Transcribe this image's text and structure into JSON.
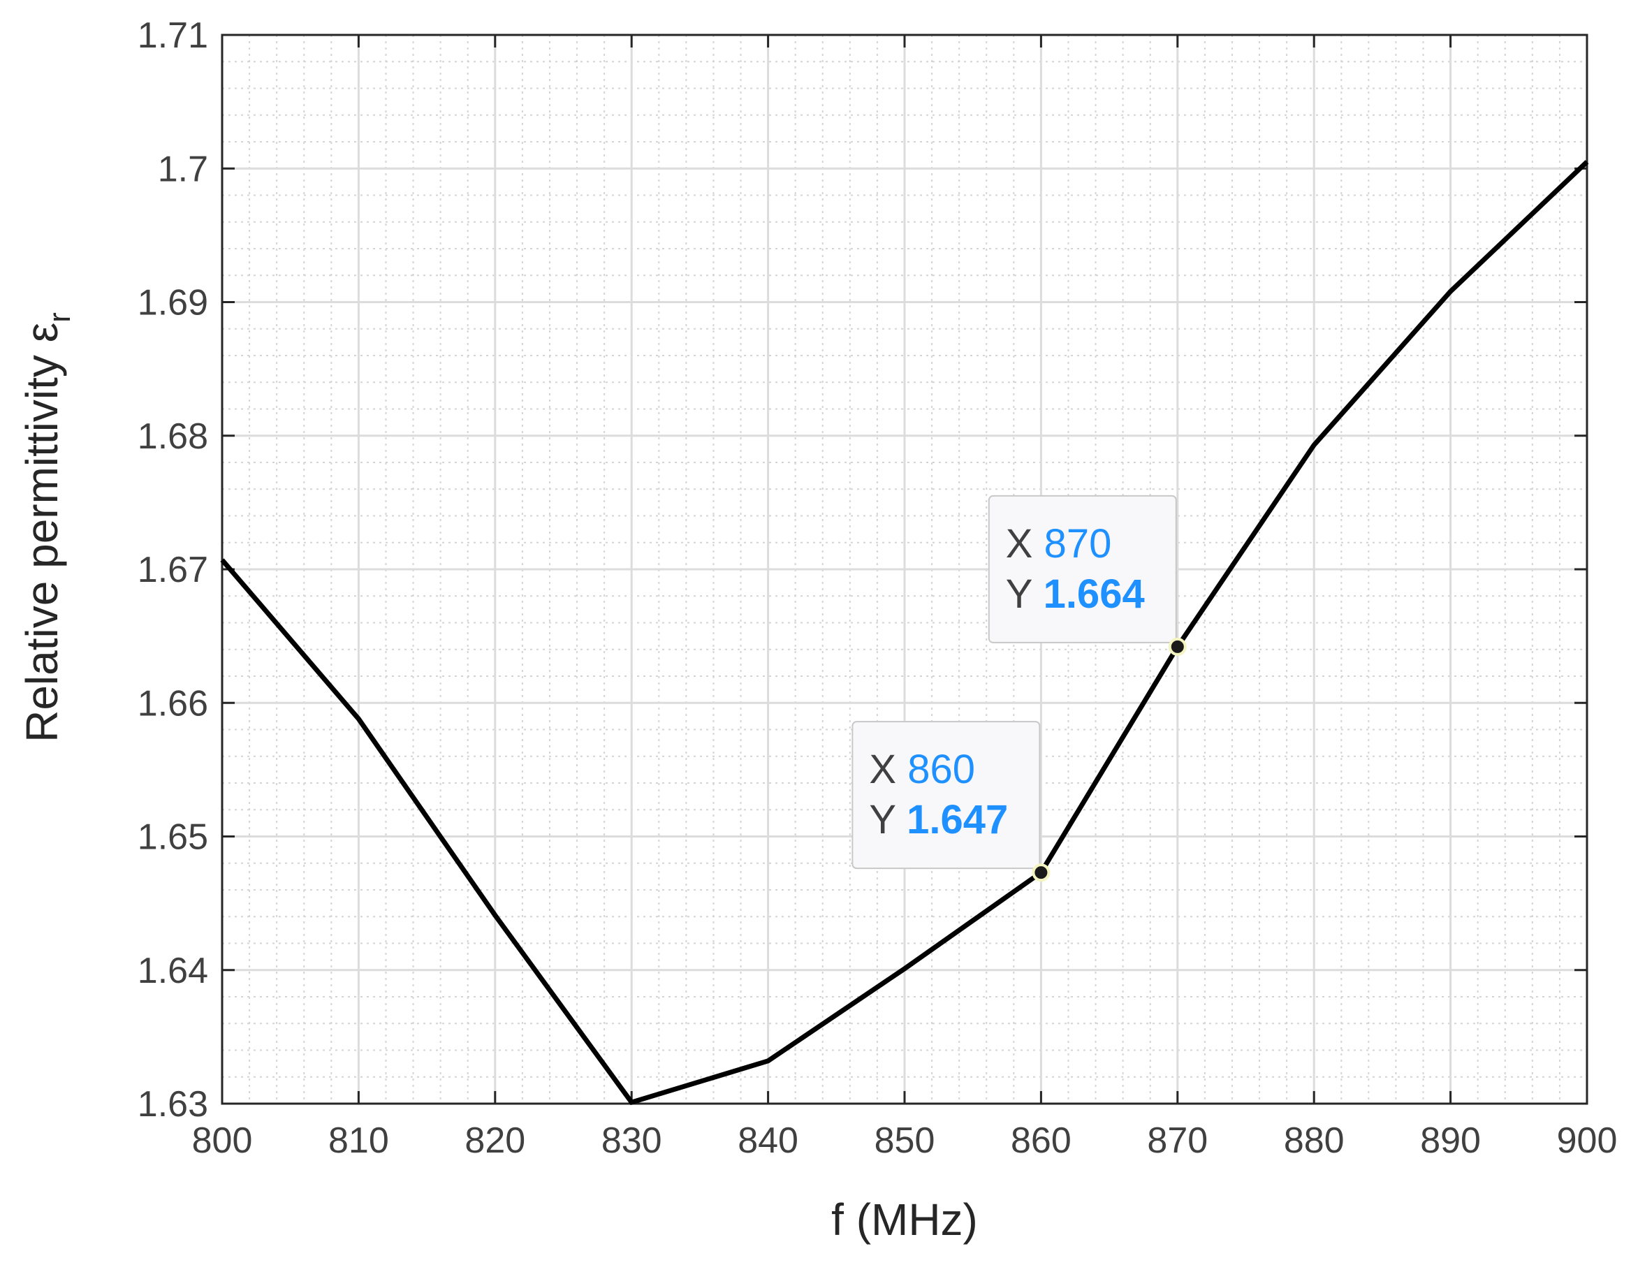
{
  "chart_data": {
    "type": "line",
    "title": "",
    "xlabel": "f (MHz)",
    "ylabel": "Relative permittivity ε",
    "ylabel_subscript": "r",
    "xlim": [
      800,
      900
    ],
    "ylim": [
      1.63,
      1.71
    ],
    "grid": true,
    "minor_grid": true,
    "x_ticks": [
      800,
      810,
      820,
      830,
      840,
      850,
      860,
      870,
      880,
      890,
      900
    ],
    "y_ticks": [
      1.63,
      1.64,
      1.65,
      1.66,
      1.67,
      1.68,
      1.69,
      1.7,
      1.71
    ],
    "x_tick_labels": [
      "800",
      "810",
      "820",
      "830",
      "840",
      "850",
      "860",
      "870",
      "880",
      "890",
      "900"
    ],
    "y_tick_labels": [
      "1.63",
      "1.64",
      "1.65",
      "1.66",
      "1.67",
      "1.68",
      "1.69",
      "1.7",
      "1.71"
    ],
    "series": [
      {
        "color": "#000000",
        "x": [
          800,
          810,
          820,
          830,
          840,
          850,
          860,
          870,
          880,
          890,
          900
        ],
        "y": [
          1.6707,
          1.6588,
          1.6441,
          1.6301,
          1.6332,
          1.6401,
          1.6473,
          1.6642,
          1.6793,
          1.6908,
          1.7005
        ]
      }
    ],
    "datatips": [
      {
        "x_label": "X",
        "x_value": "870",
        "y_label": "Y",
        "y_value": "1.664",
        "x": 870,
        "y": 1.6642
      },
      {
        "x_label": "X",
        "x_value": "860",
        "y_label": "Y",
        "y_value": "1.647",
        "x": 860,
        "y": 1.6473
      }
    ],
    "colors": {
      "line": "#000000",
      "datatip_value": "#1e90ff",
      "datatip_label": "#404040",
      "grid": "#dcdcdc"
    }
  }
}
